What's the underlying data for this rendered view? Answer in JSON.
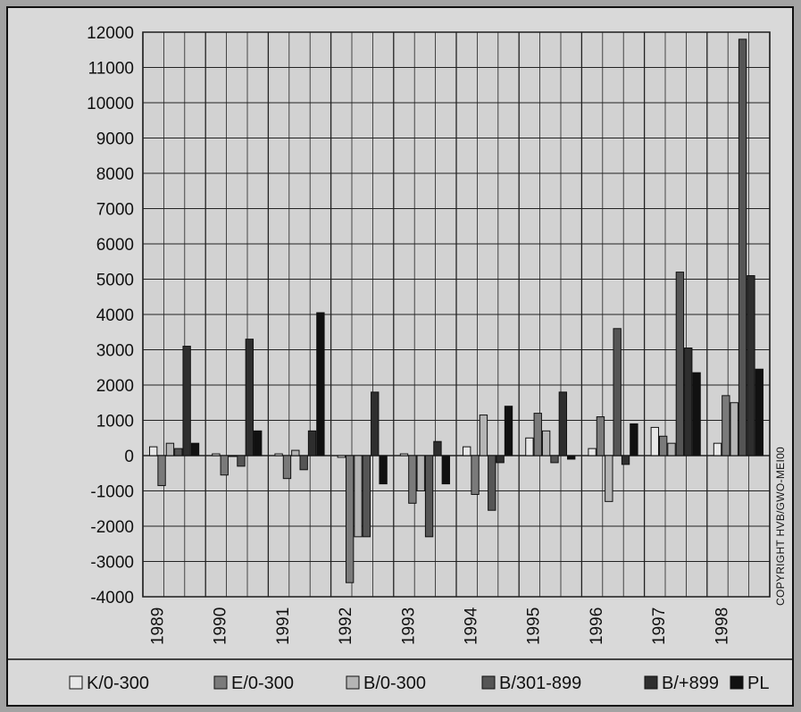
{
  "chart_data": {
    "type": "bar",
    "categories": [
      "1989",
      "1990",
      "1991",
      "1992",
      "1993",
      "1994",
      "1995",
      "1996",
      "1997",
      "1998"
    ],
    "ylim": [
      -4000,
      12000
    ],
    "yticks": [
      12000,
      11000,
      10000,
      9000,
      8000,
      7000,
      6000,
      5000,
      4000,
      3000,
      2000,
      1000,
      0,
      -1000,
      -2000,
      -3000,
      -4000
    ],
    "grid": true,
    "legend_position": "bottom",
    "series": [
      {
        "name": "K/0-300",
        "color": "#e8e8e8",
        "values": [
          250,
          50,
          50,
          -50,
          50,
          250,
          500,
          200,
          800,
          350
        ]
      },
      {
        "name": "E/0-300",
        "color": "#7a7a7a",
        "values": [
          -850,
          -550,
          -650,
          -3600,
          -1350,
          -1100,
          1200,
          1100,
          550,
          1700
        ]
      },
      {
        "name": "B/0-300",
        "color": "#b4b4b4",
        "values": [
          350,
          0,
          150,
          -2300,
          -1000,
          1150,
          700,
          -1300,
          350,
          1500
        ]
      },
      {
        "name": "B/301-899",
        "color": "#555555",
        "values": [
          200,
          -300,
          -400,
          -2300,
          -2300,
          -1550,
          -200,
          3600,
          5200,
          11800
        ]
      },
      {
        "name": "B/+899",
        "color": "#2e2e2e",
        "values": [
          3100,
          3300,
          700,
          1800,
          400,
          -200,
          1800,
          -250,
          3050,
          5100
        ]
      },
      {
        "name": "PL",
        "color": "#111111",
        "values": [
          350,
          700,
          4050,
          -800,
          -800,
          1400,
          -100,
          900,
          2350,
          2450
        ]
      }
    ]
  },
  "copyright": "COPYRIGHT HVB/GWO-MEI00"
}
